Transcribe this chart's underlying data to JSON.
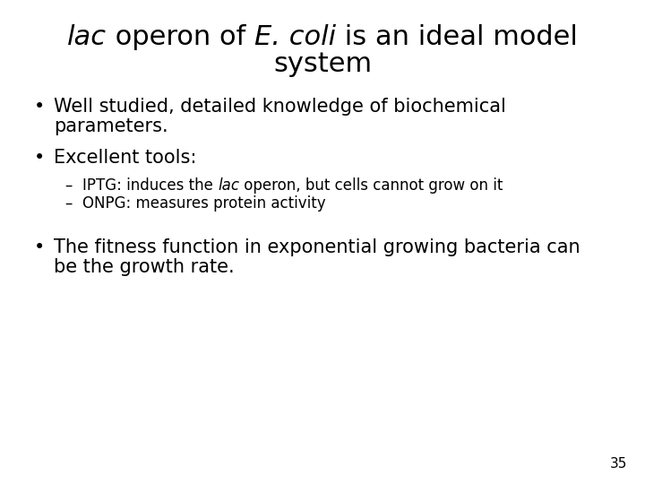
{
  "background_color": "#ffffff",
  "title_line1": [
    {
      "text": "lac",
      "italic": true
    },
    {
      "text": " operon of ",
      "italic": false
    },
    {
      "text": "E. coli",
      "italic": true
    },
    {
      "text": " is an ideal model",
      "italic": false
    }
  ],
  "title_line2": "system",
  "bullet1_line1": "Well studied, detailed knowledge of biochemical",
  "bullet1_line2": "parameters.",
  "bullet2_main": "Excellent tools:",
  "sub1_parts": [
    {
      "text": "IPTG: induces the ",
      "italic": false
    },
    {
      "text": "lac",
      "italic": true
    },
    {
      "text": " operon, but cells cannot grow on it",
      "italic": false
    }
  ],
  "sub2": "ONPG: measures protein activity",
  "bullet3_line1": "The fitness function in exponential growing bacteria can",
  "bullet3_line2": "be the growth rate.",
  "page_number": "35",
  "title_fontsize": 22,
  "bullet_fontsize": 15,
  "sub_fontsize": 12,
  "page_num_fontsize": 11,
  "font_family": "DejaVu Sans"
}
